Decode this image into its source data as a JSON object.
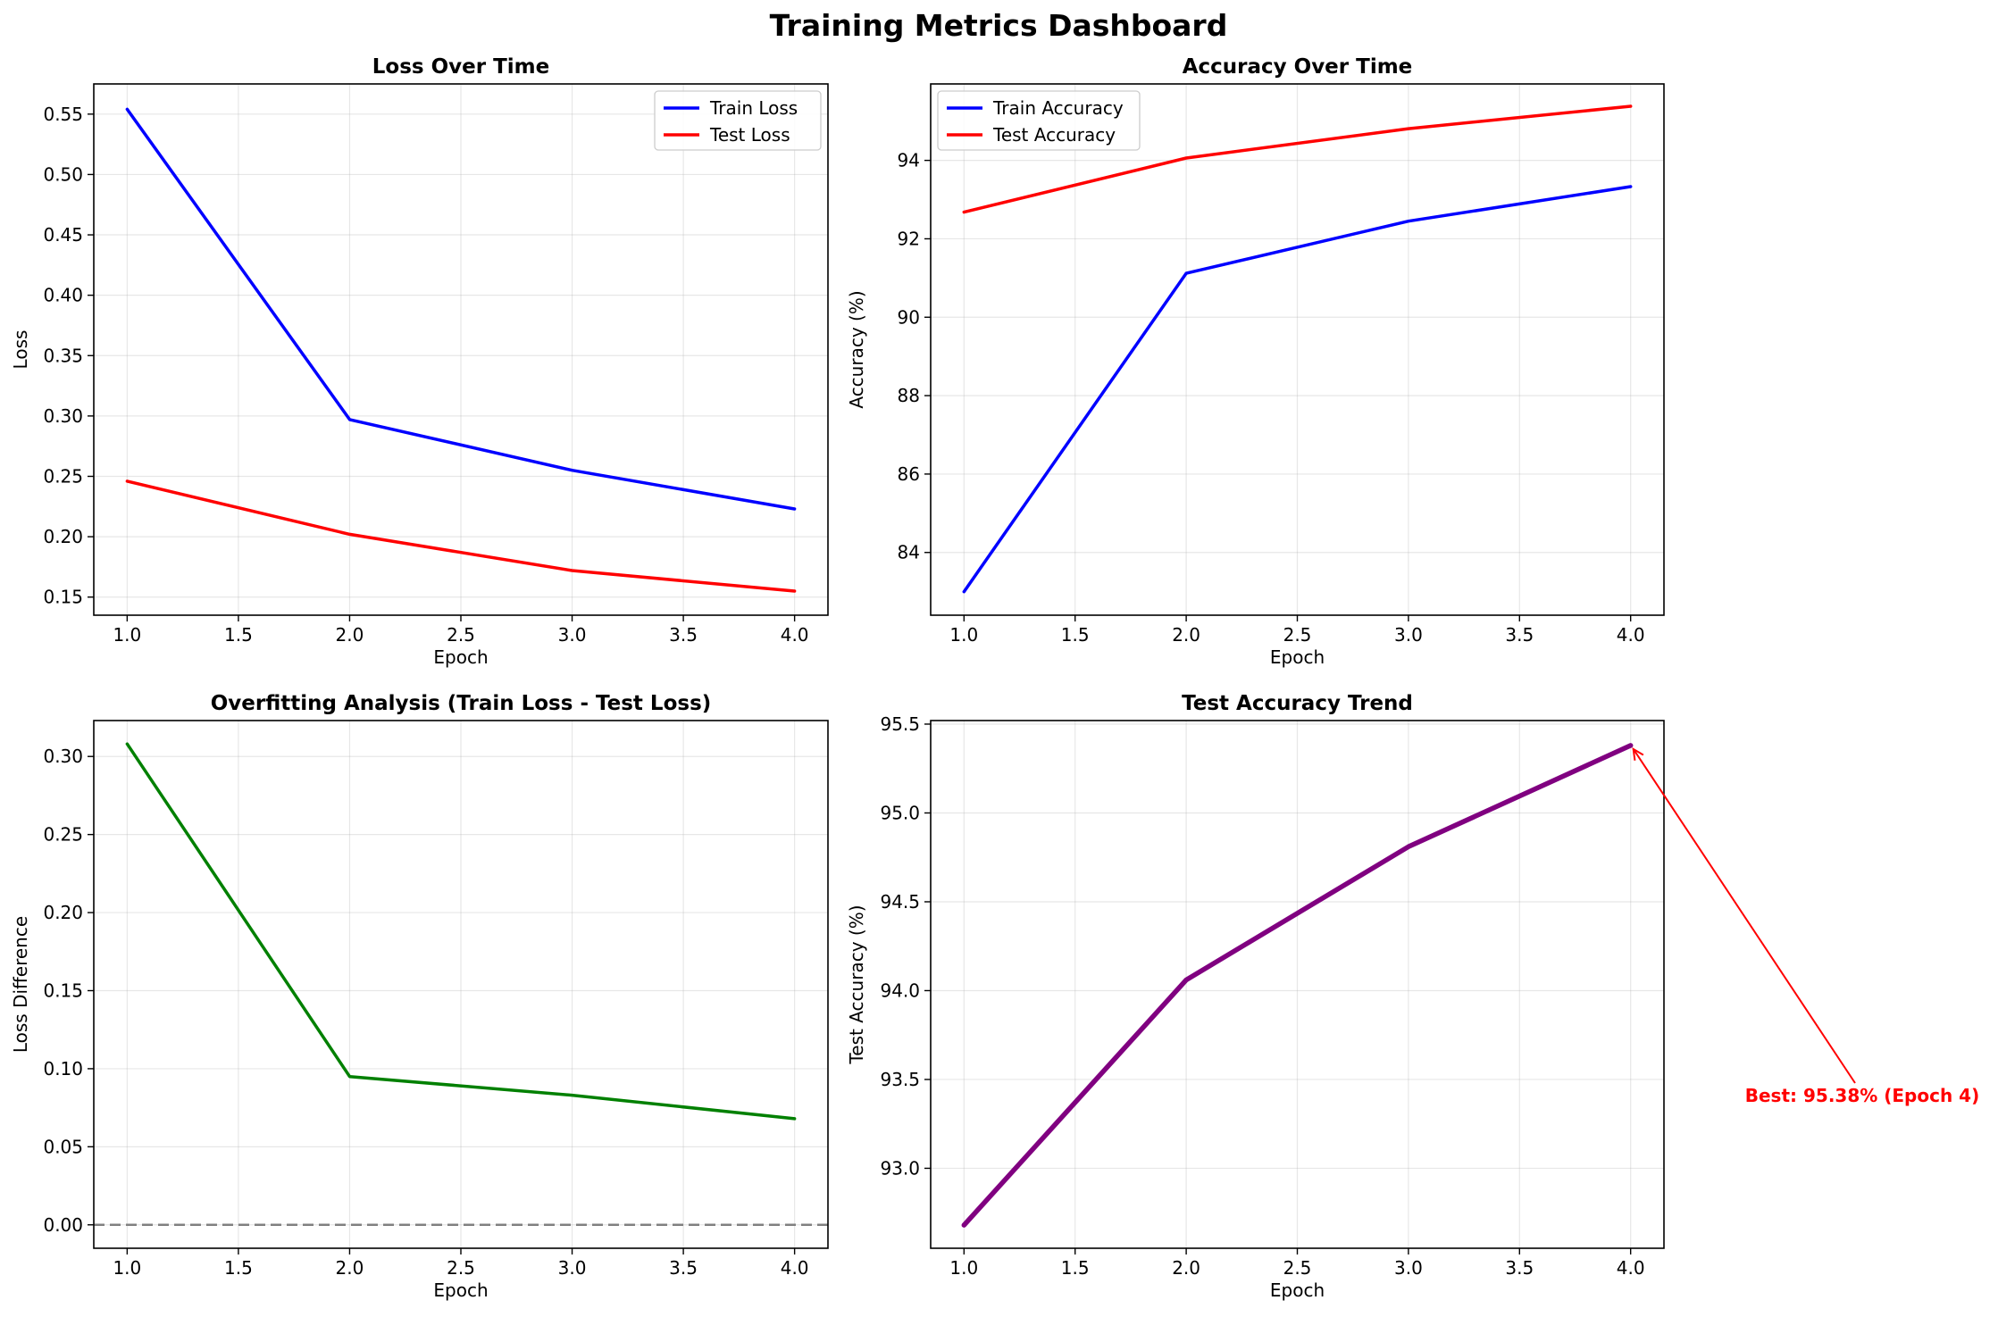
{
  "suptitle": "Training Metrics Dashboard",
  "colors": {
    "train": "#0000ff",
    "test": "#ff0000",
    "diff": "#008000",
    "trend": "#800080",
    "zero_line": "#808080",
    "annotation": "#ff0000"
  },
  "chart_data": [
    {
      "type": "line",
      "title": "Loss Over Time",
      "xlabel": "Epoch",
      "ylabel": "Loss",
      "x": [
        1,
        2,
        3,
        4
      ],
      "xlim": [
        0.85,
        4.15
      ],
      "ylim": [
        0.135,
        0.575
      ],
      "xticks": [
        1.0,
        1.5,
        2.0,
        2.5,
        3.0,
        3.5,
        4.0
      ],
      "xtick_labels": [
        "1.0",
        "1.5",
        "2.0",
        "2.5",
        "3.0",
        "3.5",
        "4.0"
      ],
      "yticks": [
        0.15,
        0.2,
        0.25,
        0.3,
        0.35,
        0.4,
        0.45,
        0.5,
        0.55
      ],
      "ytick_labels": [
        "0.15",
        "0.20",
        "0.25",
        "0.30",
        "0.35",
        "0.40",
        "0.45",
        "0.50",
        "0.55"
      ],
      "grid": true,
      "legend": "top-right",
      "series": [
        {
          "name": "Train Loss",
          "color": "#0000ff",
          "values": [
            0.554,
            0.297,
            0.255,
            0.223
          ]
        },
        {
          "name": "Test Loss",
          "color": "#ff0000",
          "values": [
            0.246,
            0.202,
            0.172,
            0.155
          ]
        }
      ]
    },
    {
      "type": "line",
      "title": "Accuracy Over Time",
      "xlabel": "Epoch",
      "ylabel": "Accuracy (%)",
      "x": [
        1,
        2,
        3,
        4
      ],
      "xlim": [
        0.85,
        4.15
      ],
      "ylim": [
        82.4,
        95.95
      ],
      "xticks": [
        1.0,
        1.5,
        2.0,
        2.5,
        3.0,
        3.5,
        4.0
      ],
      "xtick_labels": [
        "1.0",
        "1.5",
        "2.0",
        "2.5",
        "3.0",
        "3.5",
        "4.0"
      ],
      "yticks": [
        84,
        86,
        88,
        90,
        92,
        94
      ],
      "ytick_labels": [
        "84",
        "86",
        "88",
        "90",
        "92",
        "94"
      ],
      "grid": true,
      "legend": "top-left",
      "series": [
        {
          "name": "Train Accuracy",
          "color": "#0000ff",
          "values": [
            83.0,
            91.12,
            92.45,
            93.33
          ]
        },
        {
          "name": "Test Accuracy",
          "color": "#ff0000",
          "values": [
            92.68,
            94.06,
            94.81,
            95.38
          ]
        }
      ]
    },
    {
      "type": "line",
      "title": "Overfitting Analysis (Train Loss - Test Loss)",
      "xlabel": "Epoch",
      "ylabel": "Loss Difference",
      "x": [
        1,
        2,
        3,
        4
      ],
      "xlim": [
        0.85,
        4.15
      ],
      "ylim": [
        -0.015,
        0.323
      ],
      "xticks": [
        1.0,
        1.5,
        2.0,
        2.5,
        3.0,
        3.5,
        4.0
      ],
      "xtick_labels": [
        "1.0",
        "1.5",
        "2.0",
        "2.5",
        "3.0",
        "3.5",
        "4.0"
      ],
      "yticks": [
        0.0,
        0.05,
        0.1,
        0.15,
        0.2,
        0.25,
        0.3
      ],
      "ytick_labels": [
        "0.00",
        "0.05",
        "0.10",
        "0.15",
        "0.20",
        "0.25",
        "0.30"
      ],
      "grid": true,
      "reference_line": {
        "y": 0,
        "style": "dashed",
        "color": "#808080"
      },
      "series": [
        {
          "color": "#008000",
          "values": [
            0.308,
            0.095,
            0.083,
            0.068
          ]
        }
      ]
    },
    {
      "type": "line",
      "title": "Test Accuracy Trend",
      "xlabel": "Epoch",
      "ylabel": "Test Accuracy (%)",
      "x": [
        1,
        2,
        3,
        4
      ],
      "xlim": [
        0.85,
        4.15
      ],
      "ylim": [
        92.55,
        95.52
      ],
      "xticks": [
        1.0,
        1.5,
        2.0,
        2.5,
        3.0,
        3.5,
        4.0
      ],
      "xtick_labels": [
        "1.0",
        "1.5",
        "2.0",
        "2.5",
        "3.0",
        "3.5",
        "4.0"
      ],
      "yticks": [
        93.0,
        93.5,
        94.0,
        94.5,
        95.0,
        95.5
      ],
      "ytick_labels": [
        "93.0",
        "93.5",
        "94.0",
        "94.5",
        "95.0",
        "95.5"
      ],
      "grid": true,
      "series": [
        {
          "color": "#800080",
          "values": [
            92.68,
            94.06,
            94.81,
            95.38
          ]
        }
      ],
      "annotation": {
        "text": "Best: 95.38% (Epoch 4)",
        "x": 4,
        "y": 95.38
      }
    }
  ]
}
